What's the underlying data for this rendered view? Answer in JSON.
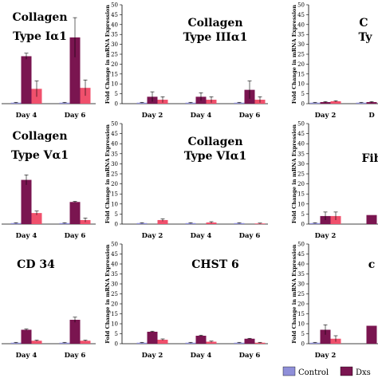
{
  "colors": {
    "control": "#8f8fd9",
    "dxs": "#7a1550",
    "third": "#f0506c",
    "axis": "#000000",
    "errorbar": "#000000"
  },
  "chart_data": [
    {
      "type": "bar",
      "title_lines": [
        "Collagen",
        "Type Iα1"
      ],
      "categories": [
        "Day 4",
        "Day 6"
      ],
      "series": [
        {
          "name": "Control",
          "values": [
            0.5,
            0.5
          ]
        },
        {
          "name": "Dx",
          "values": [
            24,
            33.5
          ]
        },
        {
          "name": "",
          "values": [
            7.5,
            8
          ]
        }
      ],
      "errors": [
        [
          0.2,
          0.2
        ],
        [
          1.5,
          10
        ],
        [
          4,
          4
        ]
      ],
      "ylim": [
        0,
        50
      ],
      "show_y_axis": false
    },
    {
      "type": "bar",
      "title_lines": [
        "Collagen",
        "Type IIIα1"
      ],
      "categories": [
        "Day 2",
        "Day 4",
        "Day 6"
      ],
      "series": [
        {
          "name": "Control",
          "values": [
            0.5,
            0.5,
            0.5
          ]
        },
        {
          "name": "Dx",
          "values": [
            3.5,
            3.5,
            7
          ]
        },
        {
          "name": "",
          "values": [
            2,
            2,
            2
          ]
        }
      ],
      "errors": [
        [
          0.2,
          0.2,
          0.2
        ],
        [
          2.5,
          2,
          4.5
        ],
        [
          1.5,
          1.5,
          1.5
        ]
      ],
      "ylabel": "Fold Change in mRNA Expression",
      "yticks": [
        0,
        5,
        10,
        15,
        20,
        25,
        30,
        35,
        40,
        45,
        50
      ],
      "ylim": [
        0,
        50
      ],
      "show_y_axis": true
    },
    {
      "type": "bar",
      "title_lines": [
        "C",
        "Ty"
      ],
      "categories": [
        "Day 2",
        "D"
      ],
      "series": [
        {
          "name": "Control",
          "values": [
            0.5,
            0.5
          ]
        },
        {
          "name": "Dx",
          "values": [
            0.8,
            0.8
          ]
        },
        {
          "name": "",
          "values": [
            1.2,
            0
          ]
        }
      ],
      "errors": [
        [
          0.2,
          0.2
        ],
        [
          0.3,
          0.3
        ],
        [
          0.3,
          0
        ]
      ],
      "ylabel": "Fold Change in mRNA Expression",
      "yticks": [
        0,
        5,
        10,
        15,
        20,
        25,
        30,
        35,
        40,
        45,
        50
      ],
      "ylim": [
        0,
        50
      ],
      "show_y_axis": true
    },
    {
      "type": "bar",
      "title_lines": [
        "Collagen",
        "Type Vα1"
      ],
      "categories": [
        "Day 4",
        "Day 6"
      ],
      "series": [
        {
          "name": "Control",
          "values": [
            0.5,
            0.5
          ]
        },
        {
          "name": "Dx",
          "values": [
            22,
            11
          ]
        },
        {
          "name": "",
          "values": [
            5.5,
            2
          ]
        }
      ],
      "errors": [
        [
          0.2,
          0.2
        ],
        [
          2.5,
          0.3
        ],
        [
          1,
          1
        ]
      ],
      "ylim": [
        0,
        50
      ],
      "show_y_axis": false
    },
    {
      "type": "bar",
      "title_lines": [
        "Collagen",
        "Type VIα1"
      ],
      "categories": [
        "Day 2",
        "Day 4",
        "Day 6"
      ],
      "series": [
        {
          "name": "Control",
          "values": [
            0.5,
            0.5,
            0.5
          ]
        },
        {
          "name": "Dx",
          "values": [
            0,
            0,
            0
          ]
        },
        {
          "name": "",
          "values": [
            2,
            0.8,
            0.3
          ]
        }
      ],
      "errors": [
        [
          0.2,
          0.2,
          0.2
        ],
        [
          0,
          0,
          0
        ],
        [
          0.6,
          0.4,
          0.2
        ]
      ],
      "ylabel": "Fold Change in mRNA Expression",
      "yticks": [
        0,
        5,
        10,
        15,
        20,
        25,
        30,
        35,
        40,
        45,
        50
      ],
      "ylim": [
        0,
        50
      ],
      "show_y_axis": true
    },
    {
      "type": "bar",
      "title_lines": [
        "Fib"
      ],
      "categories": [
        "Day 2",
        ""
      ],
      "series": [
        {
          "name": "Control",
          "values": [
            0.5,
            0
          ]
        },
        {
          "name": "Dx",
          "values": [
            4,
            4.5
          ]
        },
        {
          "name": "",
          "values": [
            4,
            0
          ]
        }
      ],
      "errors": [
        [
          0.2,
          0
        ],
        [
          2,
          0
        ],
        [
          2,
          0
        ]
      ],
      "ylabel": "Fold Change in mRNA Expression",
      "yticks": [
        0,
        5,
        10,
        15,
        20,
        25,
        30,
        35,
        40,
        45,
        50
      ],
      "ylim": [
        0,
        50
      ],
      "show_y_axis": true
    },
    {
      "type": "bar",
      "title_lines": [
        "CD 34"
      ],
      "categories": [
        "Day 4",
        "Day 6"
      ],
      "series": [
        {
          "name": "Control",
          "values": [
            0.5,
            0.5
          ]
        },
        {
          "name": "Dx",
          "values": [
            7,
            12
          ]
        },
        {
          "name": "",
          "values": [
            1.5,
            1.5
          ]
        }
      ],
      "errors": [
        [
          0.2,
          0.2
        ],
        [
          0.4,
          1.3
        ],
        [
          0.3,
          0.3
        ]
      ],
      "ylim": [
        0,
        50
      ],
      "show_y_axis": false
    },
    {
      "type": "bar",
      "title_lines": [
        "CHST 6"
      ],
      "categories": [
        "Day 2",
        "Day 4",
        "Day 6"
      ],
      "series": [
        {
          "name": "Control",
          "values": [
            0.5,
            0.5,
            0.5
          ]
        },
        {
          "name": "Dx",
          "values": [
            6,
            4,
            2.5
          ]
        },
        {
          "name": "",
          "values": [
            2,
            1,
            0.5
          ]
        }
      ],
      "errors": [
        [
          0.2,
          0.2,
          0.2
        ],
        [
          0.3,
          0.3,
          0.2
        ],
        [
          0.4,
          0.3,
          0.2
        ]
      ],
      "ylabel": "Fold Change in mRNA Expression",
      "yticks": [
        0,
        5,
        10,
        15,
        20,
        25,
        30,
        35,
        40,
        45,
        50
      ],
      "ylim": [
        0,
        50
      ],
      "show_y_axis": true
    },
    {
      "type": "bar",
      "title_lines": [
        "c"
      ],
      "categories": [
        "Day 2",
        ""
      ],
      "series": [
        {
          "name": "Control",
          "values": [
            0.5,
            0
          ]
        },
        {
          "name": "Dx",
          "values": [
            7,
            9
          ]
        },
        {
          "name": "",
          "values": [
            2.5,
            0
          ]
        }
      ],
      "errors": [
        [
          0.2,
          0
        ],
        [
          2.5,
          0
        ],
        [
          1.5,
          0
        ]
      ],
      "ylabel": "Fold Change in mRNA Expression",
      "yticks": [
        0,
        5,
        10,
        15,
        20,
        25,
        30,
        35,
        40,
        45,
        50
      ],
      "ylim": [
        0,
        50
      ],
      "show_y_axis": true
    }
  ],
  "legend": {
    "items": [
      {
        "label": "Control",
        "color": "#8f8fd9"
      },
      {
        "label": "Dxs",
        "color": "#7a1550"
      }
    ]
  }
}
